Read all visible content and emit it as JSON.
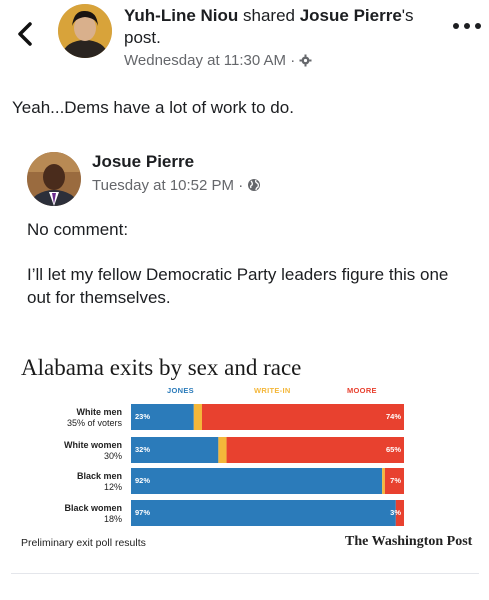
{
  "post": {
    "author": "Yuh-Line Niou",
    "action": " shared ",
    "shared_from": "Josue Pierre",
    "shared_suffix": "'s post.",
    "timestamp": "Wednesday at 11:30 AM",
    "privacy_icon": "settings-icon",
    "text": "Yeah...Dems have a lot of work to do."
  },
  "shared_post": {
    "author": "Josue Pierre",
    "timestamp": "Tuesday at 10:52 PM",
    "privacy_icon": "globe-icon",
    "paragraph1": "No comment:",
    "paragraph2": "I’ll let my fellow Democratic Party leaders figure this one out for themselves."
  },
  "chart_data": {
    "type": "bar",
    "stacked": true,
    "orientation": "horizontal",
    "title": "Alabama exits by sex and race",
    "legend_position": "top",
    "categories": [
      "White men",
      "White women",
      "Black men",
      "Black women"
    ],
    "category_notes": [
      "35% of voters",
      "30%",
      "12%",
      "18%"
    ],
    "series": [
      {
        "name": "JONES",
        "color": "#2b7bba",
        "values": [
          23,
          32,
          92,
          97
        ],
        "labels": [
          "23%",
          "32%",
          "92%",
          "97%"
        ]
      },
      {
        "name": "WRITE-IN",
        "color": "#f4b73a",
        "values": [
          3,
          3,
          1,
          0
        ],
        "labels": [
          "",
          "",
          "",
          ""
        ]
      },
      {
        "name": "MOORE",
        "color": "#e8412f",
        "values": [
          74,
          65,
          7,
          3
        ],
        "labels": [
          "74%",
          "65%",
          "7%",
          "3%"
        ]
      }
    ],
    "xlim": [
      0,
      100
    ],
    "footnote": "Preliminary exit poll results",
    "source": "The Washington Post"
  }
}
